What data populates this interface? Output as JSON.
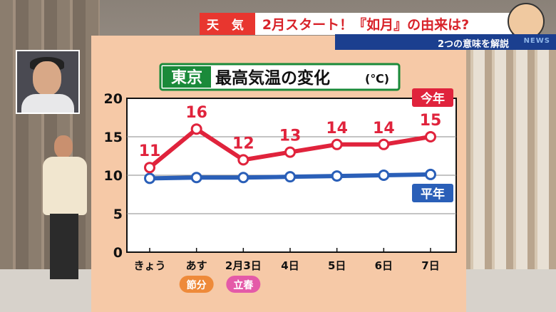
{
  "header": {
    "tag": "天 気",
    "headline": "2月スタート！『如月』の由来は?",
    "subtitle": "2つの意味を解説",
    "news_logo": "NEWS"
  },
  "colors": {
    "today_series": "#e0233c",
    "normal_series": "#2a5fb8",
    "title_green": "#1a8a3a",
    "board_bg": "#f6c9a7",
    "header_red": "#e8362f",
    "subbar_blue": "#1b3f8f"
  },
  "chart_data": {
    "type": "line",
    "title_prefix": "東京",
    "title_main": "最高気温の変化",
    "title_unit": "(℃)",
    "categories": [
      "きょう",
      "あす",
      "2月3日",
      "4日",
      "5日",
      "6日",
      "7日"
    ],
    "category_badges": [
      {
        "index": 1,
        "label": "節分",
        "color": "#ee8a3a"
      },
      {
        "index": 2,
        "label": "立春",
        "color": "#e45aa8"
      }
    ],
    "ylim": [
      0,
      20
    ],
    "yticks": [
      0,
      5,
      10,
      15,
      20
    ],
    "grid": true,
    "series": [
      {
        "name": "今年",
        "values": [
          11,
          16,
          12,
          13,
          14,
          14,
          15
        ],
        "labels_shown": true,
        "color": "#e0233c"
      },
      {
        "name": "平年",
        "values": [
          9.6,
          9.7,
          9.7,
          9.8,
          9.9,
          10,
          10.1
        ],
        "labels_shown": false,
        "color": "#2a5fb8"
      }
    ]
  }
}
